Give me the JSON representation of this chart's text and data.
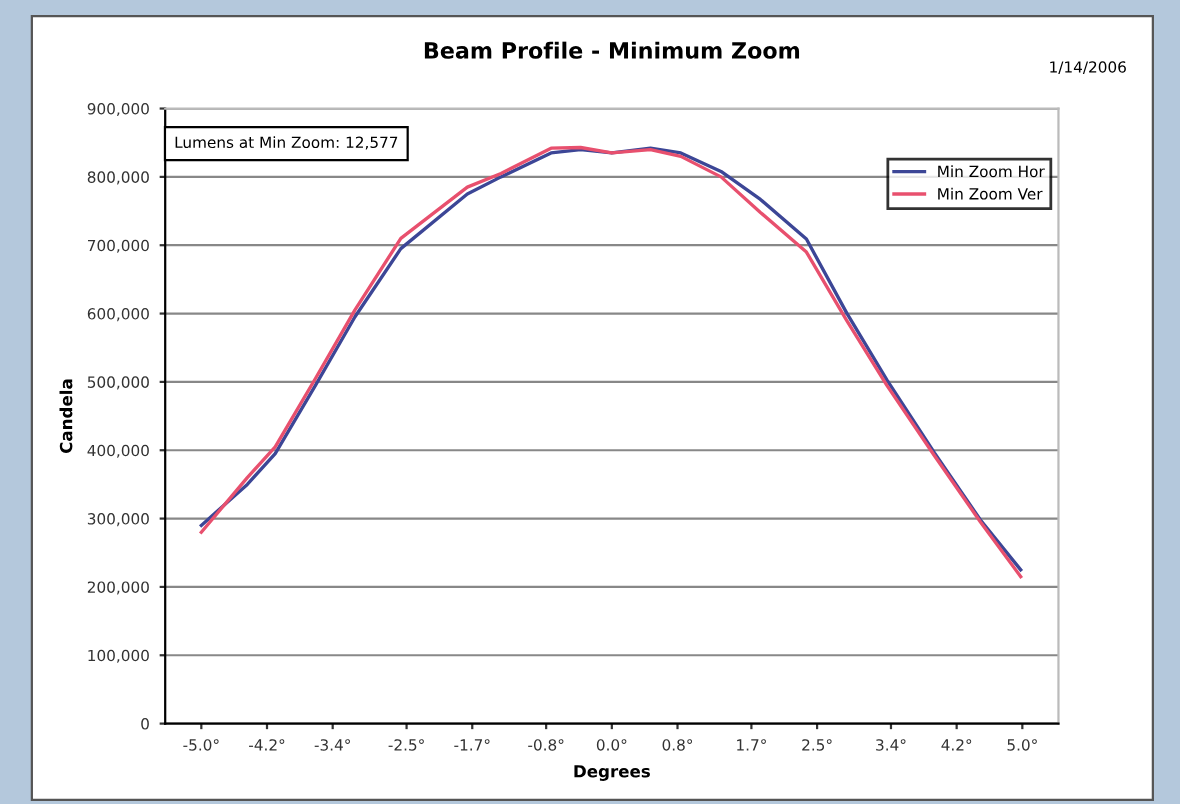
{
  "chart_data": {
    "type": "line",
    "title": "Beam Profile - Minimum Zoom",
    "xlabel": "Degrees",
    "ylabel": "Candela",
    "annotations": [
      "1/14/2006",
      "Lumens at Min Zoom: 12,577"
    ],
    "series": [
      {
        "name": "Min Zoom Hor",
        "color": "#3c4696",
        "x": [
          -5.0,
          -4.44,
          -4.1,
          -3.61,
          -3.13,
          -2.57,
          -1.76,
          -1.35,
          -0.74,
          -0.38,
          0.0,
          0.47,
          0.84,
          1.33,
          1.81,
          2.37,
          2.86,
          3.35,
          3.93,
          4.49,
          4.98
        ],
        "values": [
          290000,
          350000,
          395000,
          495000,
          595000,
          695000,
          775000,
          800000,
          835000,
          840000,
          835000,
          842000,
          835000,
          808000,
          767000,
          709000,
          601000,
          503000,
          396000,
          298000,
          225000
        ]
      },
      {
        "name": "Min Zoom Ver",
        "color": "#e8506e",
        "x": [
          -5.0,
          -4.44,
          -4.1,
          -3.61,
          -3.13,
          -2.57,
          -1.76,
          -1.35,
          -0.74,
          -0.38,
          0.0,
          0.47,
          0.84,
          1.33,
          1.81,
          2.37,
          2.86,
          3.35,
          3.93,
          4.49,
          4.98
        ],
        "values": [
          280000,
          360000,
          405000,
          505000,
          605000,
          710000,
          785000,
          805000,
          842000,
          843000,
          835000,
          840000,
          830000,
          800000,
          748000,
          690000,
          590000,
          495000,
          392000,
          295000,
          215000
        ]
      }
    ],
    "xlim": [
      -5.44,
      5.44
    ],
    "xticks": [
      {
        "value": -5.0,
        "label": "-5.0°"
      },
      {
        "value": -4.2,
        "label": "-4.2°"
      },
      {
        "value": -3.4,
        "label": "-3.4°"
      },
      {
        "value": -2.5,
        "label": "-2.5°"
      },
      {
        "value": -1.7,
        "label": "-1.7°"
      },
      {
        "value": -0.8,
        "label": "-0.8°"
      },
      {
        "value": 0.0,
        "label": "0.0°"
      },
      {
        "value": 0.8,
        "label": "0.8°"
      },
      {
        "value": 1.7,
        "label": "1.7°"
      },
      {
        "value": 2.5,
        "label": "2.5°"
      },
      {
        "value": 3.4,
        "label": "3.4°"
      },
      {
        "value": 4.2,
        "label": "4.2°"
      },
      {
        "value": 5.0,
        "label": "5.0°"
      }
    ],
    "ylim": [
      0,
      900000
    ],
    "yticks": [
      0,
      {
        "value": 100000,
        "label": "100,000"
      },
      {
        "value": 200000,
        "label": "200,000"
      },
      {
        "value": 300000,
        "label": "300,000"
      },
      {
        "value": 400000,
        "label": "400,000"
      },
      {
        "value": 500000,
        "label": "500,000"
      },
      {
        "value": 600000,
        "label": "600,000"
      },
      {
        "value": 700000,
        "label": "700,000"
      },
      {
        "value": 800000,
        "label": "800,000"
      },
      {
        "value": 900000,
        "label": "900,000"
      }
    ],
    "grid": "y",
    "legend": "top right",
    "marker": "none",
    "line_style": "solid"
  }
}
